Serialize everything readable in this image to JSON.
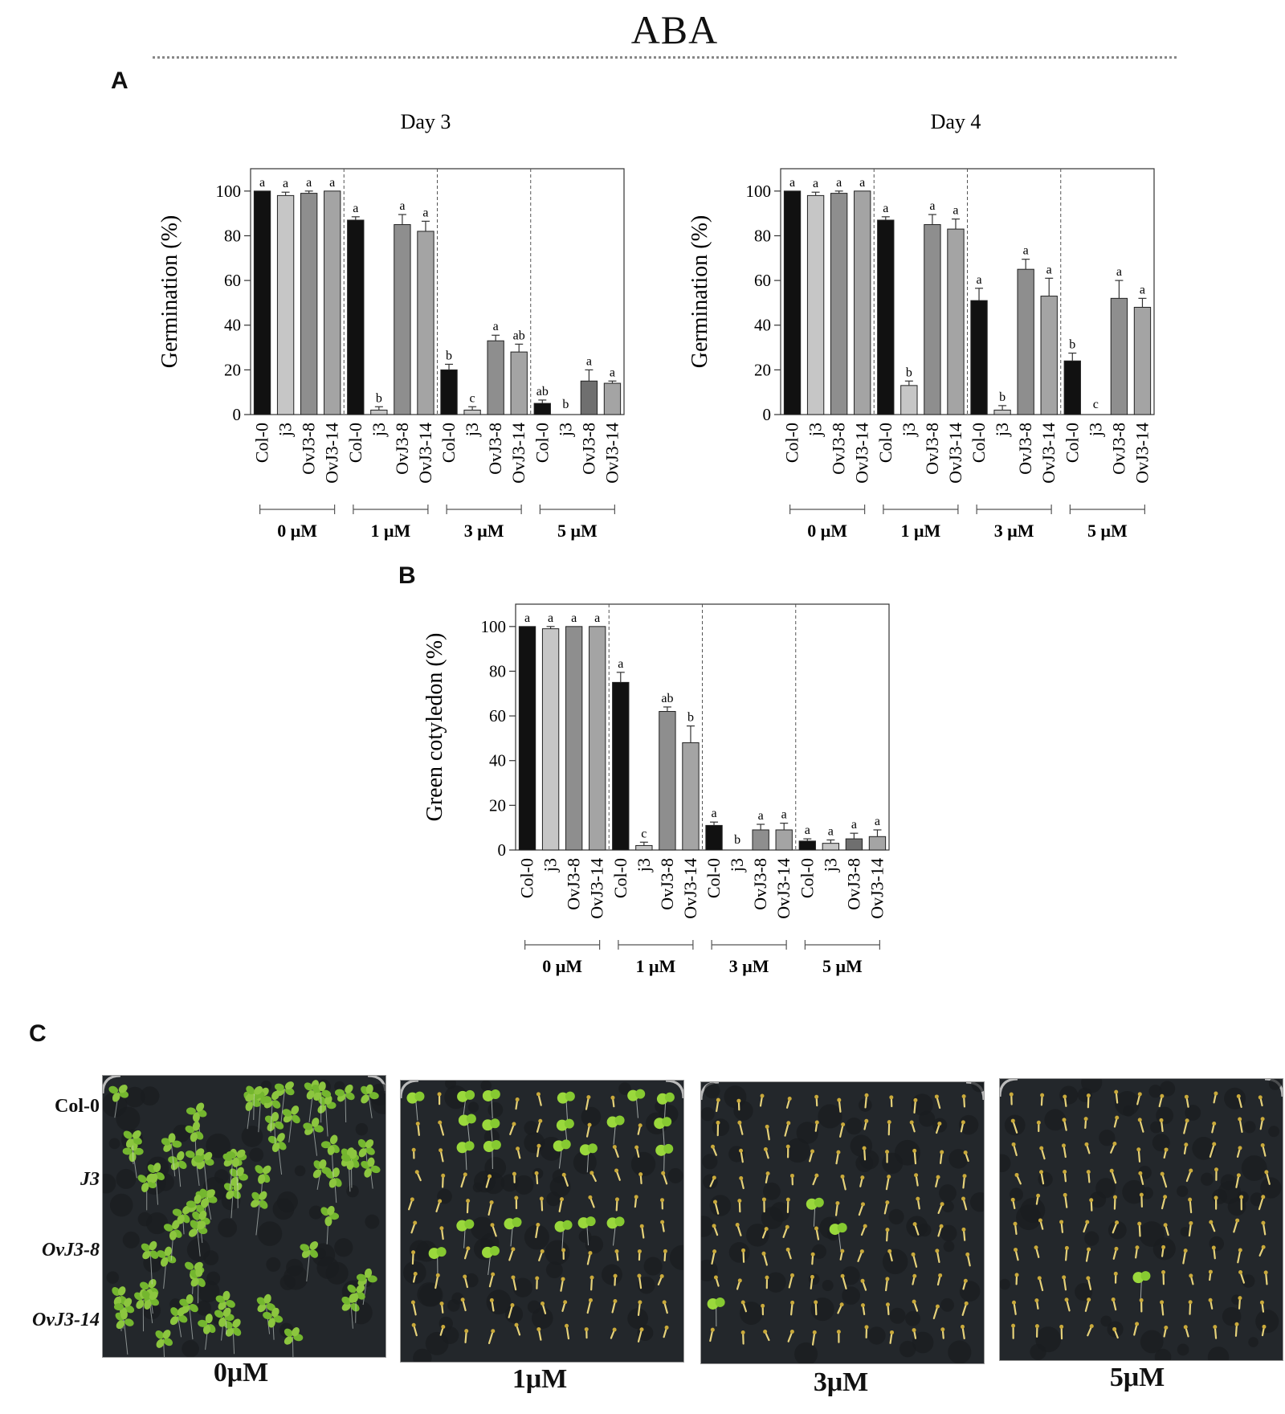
{
  "figure": {
    "title": "ABA",
    "panel_a_letter": "A",
    "panel_b_letter": "B",
    "panel_c_letter": "C"
  },
  "colors": {
    "Col-0": "#111111",
    "j3": "#c6c6c6",
    "OvJ3-8": "#8e8e8e",
    "OvJ3-14": "#a4a4a4",
    "OvJ3-8 5uM": "#6f6f6f"
  },
  "chart_data": [
    {
      "type": "bar",
      "title": "Day 3",
      "ylabel": "Germination (%)",
      "ylim": [
        0,
        110
      ],
      "yticks": [
        0,
        20,
        40,
        60,
        80,
        100
      ],
      "genotypes": [
        "Col-0",
        "j3",
        "OvJ3-8",
        "OvJ3-14"
      ],
      "groups": [
        {
          "name": "0 μM",
          "values": [
            100,
            98,
            99,
            100
          ],
          "errors": [
            0,
            1.5,
            1,
            0
          ],
          "letters": [
            "a",
            "a",
            "a",
            "a"
          ]
        },
        {
          "name": "1 μM",
          "values": [
            87,
            2,
            85,
            82
          ],
          "errors": [
            1.5,
            1.5,
            4.5,
            4.5
          ],
          "letters": [
            "a",
            "b",
            "a",
            "a"
          ]
        },
        {
          "name": "3 μM",
          "values": [
            20,
            2,
            33,
            28
          ],
          "errors": [
            2.5,
            1.5,
            2.5,
            3.5
          ],
          "letters": [
            "b",
            "c",
            "a",
            "ab"
          ]
        },
        {
          "name": "5 μM",
          "values": [
            5,
            0,
            15,
            14
          ],
          "errors": [
            1.5,
            0,
            5,
            1
          ],
          "letters": [
            "ab",
            "b",
            "a",
            "a"
          ]
        }
      ]
    },
    {
      "type": "bar",
      "title": "Day 4",
      "ylabel": "Germination (%)",
      "ylim": [
        0,
        110
      ],
      "yticks": [
        0,
        20,
        40,
        60,
        80,
        100
      ],
      "genotypes": [
        "Col-0",
        "j3",
        "OvJ3-8",
        "OvJ3-14"
      ],
      "groups": [
        {
          "name": "0 μM",
          "values": [
            100,
            98,
            99,
            100
          ],
          "errors": [
            0,
            1.5,
            1,
            0
          ],
          "letters": [
            "a",
            "a",
            "a",
            "a"
          ]
        },
        {
          "name": "1 μM",
          "values": [
            87,
            13,
            85,
            83
          ],
          "errors": [
            1.5,
            2,
            4.5,
            4.5
          ],
          "letters": [
            "a",
            "b",
            "a",
            "a"
          ]
        },
        {
          "name": "3 μM",
          "values": [
            51,
            2,
            65,
            53
          ],
          "errors": [
            5.5,
            2,
            4.5,
            8
          ],
          "letters": [
            "a",
            "b",
            "a",
            "a"
          ]
        },
        {
          "name": "5 μM",
          "values": [
            24,
            0,
            52,
            48
          ],
          "errors": [
            3.5,
            0,
            8,
            4
          ],
          "letters": [
            "b",
            "c",
            "a",
            "a"
          ]
        }
      ]
    },
    {
      "type": "bar",
      "title": "",
      "ylabel": "Green cotyledon (%)",
      "ylim": [
        0,
        110
      ],
      "yticks": [
        0,
        20,
        40,
        60,
        80,
        100
      ],
      "genotypes": [
        "Col-0",
        "j3",
        "OvJ3-8",
        "OvJ3-14"
      ],
      "groups": [
        {
          "name": "0 μM",
          "values": [
            100,
            99,
            100,
            100
          ],
          "errors": [
            0,
            1,
            0,
            0
          ],
          "letters": [
            "a",
            "a",
            "a",
            "a"
          ]
        },
        {
          "name": "1 μM",
          "values": [
            75,
            2,
            62,
            48
          ],
          "errors": [
            4.5,
            1.5,
            2,
            7.5
          ],
          "letters": [
            "a",
            "c",
            "ab",
            "b"
          ]
        },
        {
          "name": "3 μM",
          "values": [
            11,
            0,
            9,
            9
          ],
          "errors": [
            1.5,
            0,
            2.5,
            3
          ],
          "letters": [
            "a",
            "b",
            "a",
            "a"
          ]
        },
        {
          "name": "5 μM",
          "values": [
            4,
            3,
            5,
            6
          ],
          "errors": [
            1,
            1.5,
            2.5,
            3
          ],
          "letters": [
            "a",
            "a",
            "a",
            "a"
          ]
        }
      ]
    }
  ],
  "panel_c": {
    "row_labels": [
      "Col-0",
      "J3",
      "OvJ3-8",
      "OvJ3-14"
    ],
    "conditions": [
      "0μM",
      "1μM",
      "3μM",
      "5μM"
    ]
  }
}
